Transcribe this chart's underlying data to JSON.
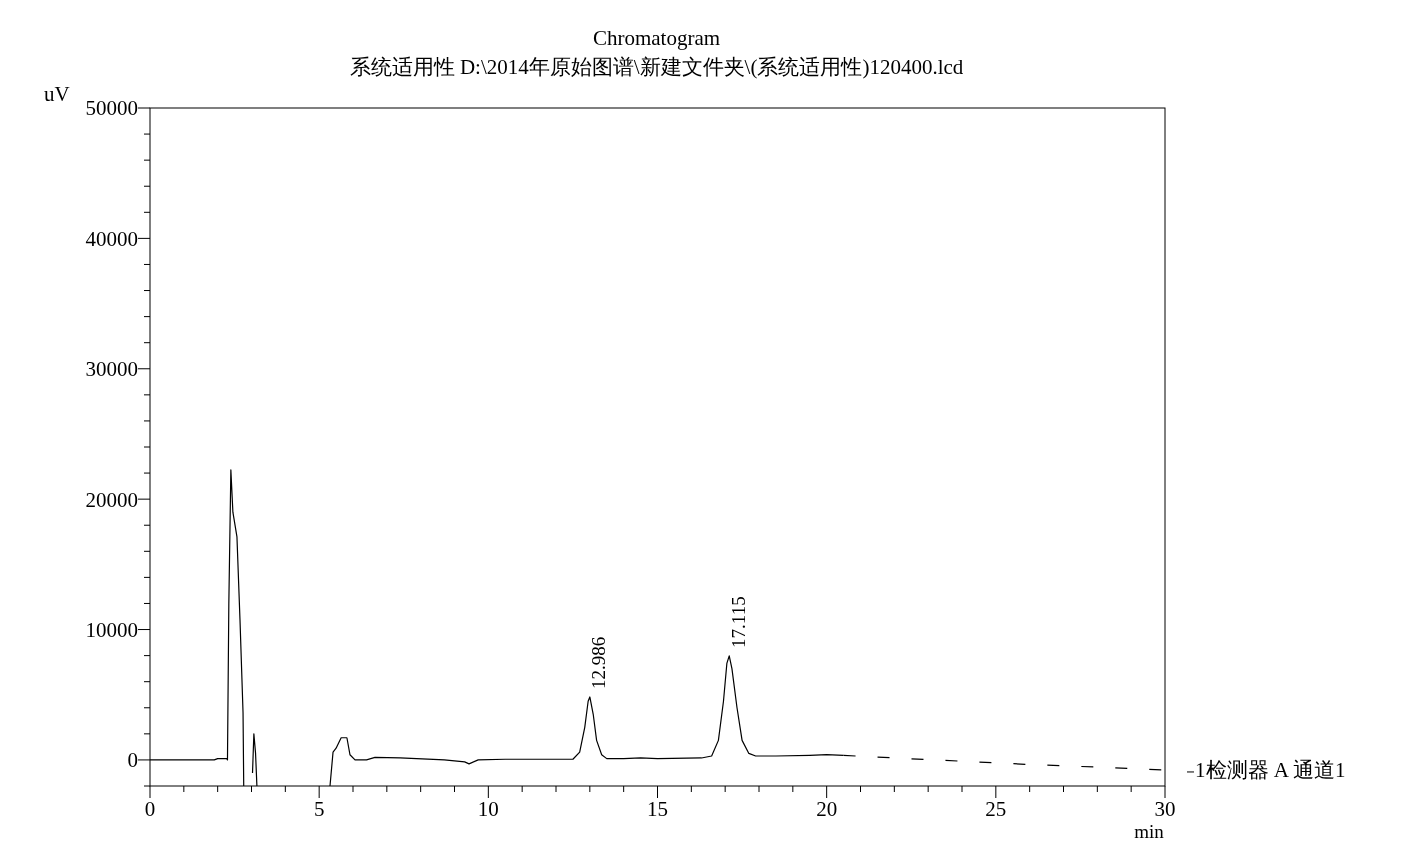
{
  "chart_data": {
    "type": "line",
    "title": "Chromatogram",
    "subtitle": "系统适用性 D:\\2014年原始图谱\\新建文件夹\\(系统适用性)120400.lcd",
    "xlabel": "min",
    "ylabel": "uV",
    "xlim": [
      0,
      30
    ],
    "ylim": [
      -2000,
      50000
    ],
    "xticks": [
      0,
      {
        "value": 1,
        "label": null
      },
      {
        "value": 2,
        "label": null
      },
      {
        "value": 3,
        "label": null
      },
      {
        "value": 4,
        "label": null
      },
      5,
      {
        "value": 6,
        "label": null
      },
      {
        "value": 7,
        "label": null
      },
      {
        "value": 8,
        "label": null
      },
      {
        "value": 9,
        "label": null
      },
      10,
      {
        "value": 11,
        "label": null
      },
      {
        "value": 12,
        "label": null
      },
      {
        "value": 13,
        "label": null
      },
      {
        "value": 14,
        "label": null
      },
      15,
      {
        "value": 16,
        "label": null
      },
      {
        "value": 17,
        "label": null
      },
      {
        "value": 18,
        "label": null
      },
      {
        "value": 19,
        "label": null
      },
      20,
      {
        "value": 21,
        "label": null
      },
      {
        "value": 22,
        "label": null
      },
      {
        "value": 23,
        "label": null
      },
      {
        "value": 24,
        "label": null
      },
      25,
      {
        "value": 26,
        "label": null
      },
      {
        "value": 27,
        "label": null
      },
      {
        "value": 28,
        "label": null
      },
      {
        "value": 29,
        "label": null
      },
      30
    ],
    "yticks": [
      {
        "value": -2000,
        "label": null
      },
      0,
      {
        "value": 2000,
        "label": null
      },
      {
        "value": 4000,
        "label": null
      },
      {
        "value": 6000,
        "label": null
      },
      {
        "value": 8000,
        "label": null
      },
      10000,
      {
        "value": 12000,
        "label": null
      },
      {
        "value": 14000,
        "label": null
      },
      {
        "value": 16000,
        "label": null
      },
      {
        "value": 18000,
        "label": null
      },
      20000,
      {
        "value": 22000,
        "label": null
      },
      {
        "value": 24000,
        "label": null
      },
      {
        "value": 26000,
        "label": null
      },
      {
        "value": 28000,
        "label": null
      },
      30000,
      {
        "value": 32000,
        "label": null
      },
      {
        "value": 34000,
        "label": null
      },
      {
        "value": 36000,
        "label": null
      },
      {
        "value": 38000,
        "label": null
      },
      40000,
      {
        "value": 42000,
        "label": null
      },
      {
        "value": 44000,
        "label": null
      },
      {
        "value": 46000,
        "label": null
      },
      {
        "value": 48000,
        "label": null
      },
      50000
    ],
    "grid": false,
    "legend": "right",
    "series": [
      {
        "color": "#000000",
        "line_style": "solid",
        "x": [
          0,
          1.9,
          2.0,
          2.27,
          2.29,
          2.33,
          2.39,
          2.45,
          2.57,
          2.66,
          2.75,
          2.77,
          2.99,
          3.03,
          3.07,
          3.12,
          3.16,
          4.2,
          5.32,
          5.41,
          5.5,
          5.65,
          5.82,
          5.91,
          6.06,
          6.4,
          6.65,
          7.39,
          8.7,
          9.3,
          9.43,
          9.7,
          10.5,
          12.0,
          12.5,
          12.7,
          12.85,
          12.95,
          13.0,
          13.1,
          13.2,
          13.35,
          13.5,
          14.0,
          14.5,
          15.0,
          16.3,
          16.6,
          16.8,
          16.95,
          17.05,
          17.12,
          17.2,
          17.35,
          17.5,
          17.7,
          17.9,
          18.5,
          19.5,
          20.0,
          20.5
        ],
        "values": [
          0,
          0,
          100,
          100,
          0,
          12000,
          22240,
          19000,
          17100,
          10740,
          3600,
          -2000,
          null,
          -1000,
          2000,
          500,
          -2000,
          null,
          -2000,
          600,
          900,
          1700,
          1700,
          400,
          0,
          0,
          200,
          150,
          0,
          -150,
          -300,
          0,
          50,
          50,
          50,
          600,
          2500,
          4500,
          4830,
          3500,
          1500,
          400,
          100,
          100,
          150,
          100,
          150,
          300,
          1500,
          4500,
          7400,
          7980,
          7000,
          4000,
          1500,
          500,
          300,
          300,
          350,
          400,
          350
        ]
      },
      {
        "color": "#000000",
        "line_style": "dashed",
        "name": "1检测器 A 通道1",
        "x": [
          20.5,
          22,
          24,
          26,
          28,
          30
        ],
        "values": [
          350,
          150,
          -100,
          -350,
          -550,
          -770
        ]
      }
    ],
    "annotations": [
      {
        "text": "12.986",
        "x": 12.986,
        "y": 4830
      },
      {
        "text": "17.115",
        "x": 17.115,
        "y": 7980
      }
    ]
  }
}
